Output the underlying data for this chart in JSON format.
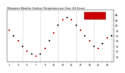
{
  "title": "Milwaukee Weather Outdoor Temperature per Hour (24 Hours)",
  "hours": [
    1,
    2,
    3,
    4,
    5,
    6,
    7,
    8,
    9,
    10,
    11,
    12,
    13,
    14,
    15,
    16,
    17,
    18,
    19,
    20,
    21,
    22,
    23,
    24
  ],
  "temps": [
    38,
    36,
    34,
    32,
    30,
    29,
    28,
    29,
    31,
    34,
    37,
    40,
    42,
    43,
    42,
    40,
    38,
    36,
    34,
    32,
    31,
    33,
    35,
    36
  ],
  "dot_color_main": "#cc0000",
  "dot_color_alt": "#111111",
  "grid_color": "#999999",
  "bg_color": "#ffffff",
  "legend_box_color": "#cc0000",
  "ylim_min": 26,
  "ylim_max": 46,
  "yticks": [
    28,
    30,
    32,
    34,
    36,
    38,
    40,
    42,
    44
  ],
  "ytick_labels": [
    "28",
    "30",
    "32",
    "34",
    "36",
    "38",
    "40",
    "42",
    "44"
  ],
  "vgrid_positions": [
    4,
    8,
    12,
    16,
    20,
    24
  ],
  "markersize": 1.5,
  "title_fontsize": 2.5,
  "tick_fontsize": 2.5
}
